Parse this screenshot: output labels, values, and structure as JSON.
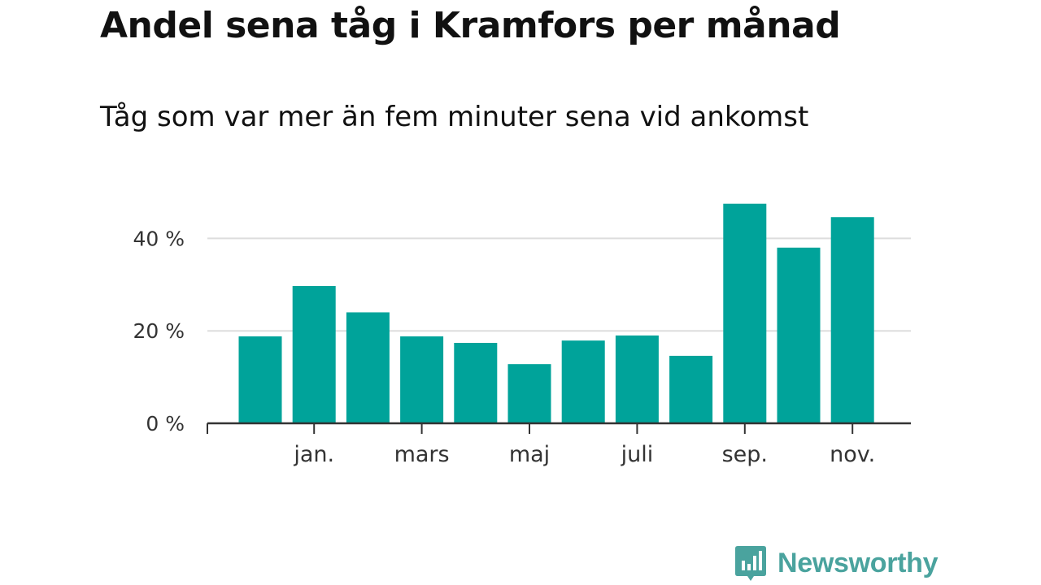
{
  "title": "Andel sena tåg i Kramfors per månad",
  "subtitle": "Tåg som var mer än fem minuter sena vid ankomst",
  "brand": {
    "name": "Newsworthy",
    "color": "#4aa39e"
  },
  "chart_data": {
    "type": "bar",
    "unit": "%",
    "color": "#00a39a",
    "grid": true,
    "ylim": [
      0,
      50
    ],
    "yticks": [
      0,
      20,
      40
    ],
    "ytick_labels": [
      "0 %",
      "20 %",
      "40 %"
    ],
    "xtick_labels": [
      {
        "label": "jan.",
        "index": 1
      },
      {
        "label": "mars",
        "index": 3
      },
      {
        "label": "maj",
        "index": 5
      },
      {
        "label": "juli",
        "index": 7
      },
      {
        "label": "sep.",
        "index": 9
      },
      {
        "label": "nov.",
        "index": 11
      }
    ],
    "values": [
      18.8,
      29.7,
      24.0,
      18.8,
      17.4,
      12.8,
      17.9,
      19.0,
      14.6,
      47.5,
      38.0,
      44.6
    ]
  }
}
